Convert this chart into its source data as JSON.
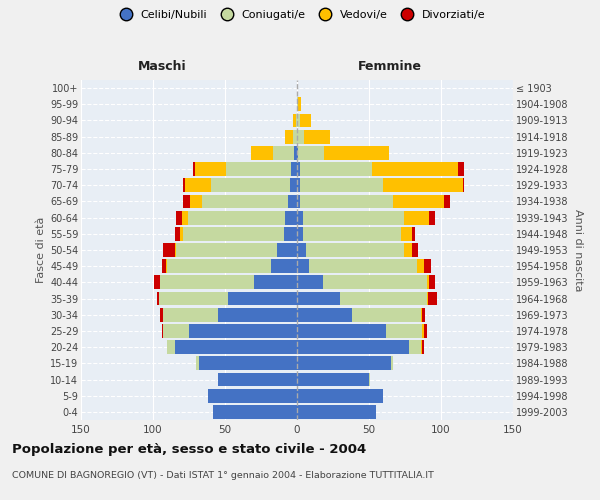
{
  "age_groups": [
    "0-4",
    "5-9",
    "10-14",
    "15-19",
    "20-24",
    "25-29",
    "30-34",
    "35-39",
    "40-44",
    "45-49",
    "50-54",
    "55-59",
    "60-64",
    "65-69",
    "70-74",
    "75-79",
    "80-84",
    "85-89",
    "90-94",
    "95-99",
    "100+"
  ],
  "birth_years": [
    "1999-2003",
    "1994-1998",
    "1989-1993",
    "1984-1988",
    "1979-1983",
    "1974-1978",
    "1969-1973",
    "1964-1968",
    "1959-1963",
    "1954-1958",
    "1949-1953",
    "1944-1948",
    "1939-1943",
    "1934-1938",
    "1929-1933",
    "1924-1928",
    "1919-1923",
    "1914-1918",
    "1909-1913",
    "1904-1908",
    "≤ 1903"
  ],
  "maschi": {
    "celibi": [
      58,
      62,
      55,
      68,
      85,
      75,
      55,
      48,
      30,
      18,
      14,
      9,
      8,
      6,
      5,
      4,
      2,
      0,
      0,
      0,
      0
    ],
    "coniugati": [
      0,
      0,
      0,
      2,
      5,
      18,
      38,
      48,
      65,
      72,
      70,
      70,
      68,
      60,
      55,
      45,
      15,
      3,
      1,
      0,
      0
    ],
    "vedovi": [
      0,
      0,
      0,
      0,
      0,
      0,
      0,
      0,
      0,
      1,
      1,
      2,
      4,
      8,
      18,
      22,
      15,
      5,
      2,
      0,
      0
    ],
    "divorziati": [
      0,
      0,
      0,
      0,
      0,
      1,
      2,
      1,
      4,
      3,
      8,
      4,
      4,
      5,
      1,
      1,
      0,
      0,
      0,
      0,
      0
    ]
  },
  "femmine": {
    "nubili": [
      55,
      60,
      50,
      65,
      78,
      62,
      38,
      30,
      18,
      8,
      6,
      4,
      4,
      2,
      2,
      2,
      1,
      0,
      0,
      0,
      0
    ],
    "coniugate": [
      0,
      0,
      1,
      2,
      8,
      25,
      48,
      60,
      72,
      75,
      68,
      68,
      70,
      65,
      58,
      50,
      18,
      5,
      2,
      1,
      0
    ],
    "vedove": [
      0,
      0,
      0,
      0,
      1,
      1,
      1,
      1,
      2,
      5,
      6,
      8,
      18,
      35,
      55,
      60,
      45,
      18,
      8,
      2,
      0
    ],
    "divorziate": [
      0,
      0,
      0,
      0,
      1,
      2,
      2,
      6,
      4,
      5,
      4,
      2,
      4,
      4,
      1,
      4,
      0,
      0,
      0,
      0,
      0
    ]
  },
  "colors": {
    "celibi_nubili": "#4472c4",
    "coniugati": "#c5d9a0",
    "vedovi": "#ffc000",
    "divorziati": "#cc0000"
  },
  "xlim": 150,
  "title": "Popolazione per età, sesso e stato civile - 2004",
  "subtitle": "COMUNE DI BAGNOREGIO (VT) - Dati ISTAT 1° gennaio 2004 - Elaborazione TUTTITALIA.IT",
  "ylabel_left": "Fasce di età",
  "ylabel_right": "Anni di nascita",
  "xlabel_left": "Maschi",
  "xlabel_right": "Femmine",
  "bg_color": "#f0f0f0",
  "plot_bg": "#e8eef5",
  "grid_color": "#ffffff"
}
